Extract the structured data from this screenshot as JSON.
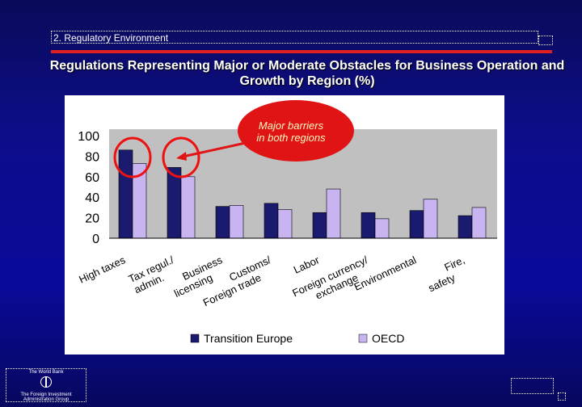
{
  "section": {
    "label": "2. Regulatory Environment"
  },
  "slide": {
    "title": "Regulations Representing Major or Moderate Obstacles for Business Operation and Growth by Region (%)"
  },
  "annotation": {
    "text_line1": "Major barriers",
    "text_line2": "in both regions"
  },
  "logo": {
    "top_text": "The World Bank",
    "bottom_text_line1": "The Foreign Investment",
    "bottom_text_line2": "Administration Group"
  },
  "colors": {
    "transition_europe": "#1a1a6e",
    "oecd": "#c8b4f0",
    "highlight": "#ee1111",
    "callout_fill": "#e01414"
  },
  "chart_data": {
    "type": "bar",
    "title": "",
    "categories": [
      "High taxes",
      "Tax regul./ admin.",
      "Business licensing",
      "Customs/ Foreign trade",
      "Labor",
      "Foreign currency/ exchange",
      "Environmental",
      "Fire, safety"
    ],
    "series": [
      {
        "name": "Transition Europe",
        "values": [
          86,
          69,
          31,
          34,
          25,
          25,
          27,
          22
        ]
      },
      {
        "name": "OECD",
        "values": [
          73,
          60,
          32,
          28,
          48,
          19,
          38,
          30
        ]
      }
    ],
    "ylim": [
      0,
      100
    ],
    "yticks": [
      "0",
      "20",
      "40",
      "60",
      "80",
      "100"
    ],
    "xlabel": "",
    "ylabel": "",
    "legend_position": "bottom",
    "grid": false,
    "highlighted_categories": [
      "High taxes",
      "Tax regul./ admin."
    ]
  }
}
